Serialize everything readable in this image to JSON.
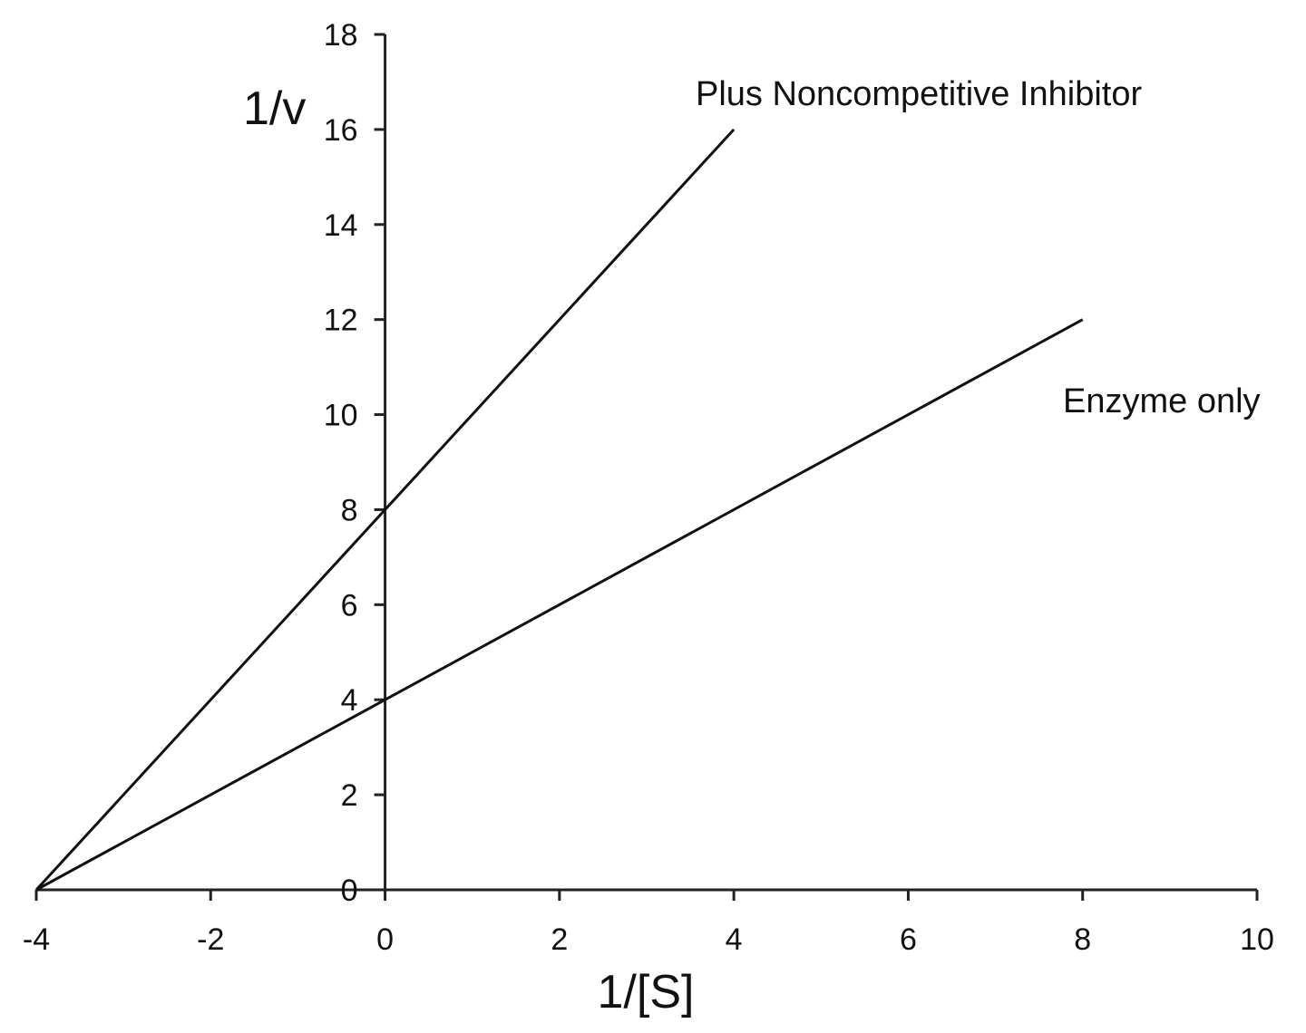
{
  "chart_data": {
    "type": "line",
    "title": "",
    "xlabel": "1/[S]",
    "ylabel": "1/v",
    "xlim": [
      -4,
      10
    ],
    "ylim": [
      0,
      18
    ],
    "xticks": [
      -4,
      -2,
      0,
      2,
      4,
      6,
      8,
      10
    ],
    "yticks": [
      0,
      2,
      4,
      6,
      8,
      10,
      12,
      14,
      16,
      18
    ],
    "x_tick_labels": [
      "-4",
      "-2",
      "0",
      "2",
      "4",
      "6",
      "8",
      "10"
    ],
    "y_tick_labels": [
      "0",
      "2",
      "4",
      "6",
      "8",
      "10",
      "12",
      "14",
      "16",
      "18"
    ],
    "grid": false,
    "series": [
      {
        "name": "Plus Noncompetitive Inhibitor",
        "x": [
          -4,
          4
        ],
        "y": [
          0,
          16
        ],
        "color": "#111111"
      },
      {
        "name": "Enzyme only",
        "x": [
          -4,
          8
        ],
        "y": [
          0,
          12
        ],
        "color": "#111111"
      }
    ]
  }
}
